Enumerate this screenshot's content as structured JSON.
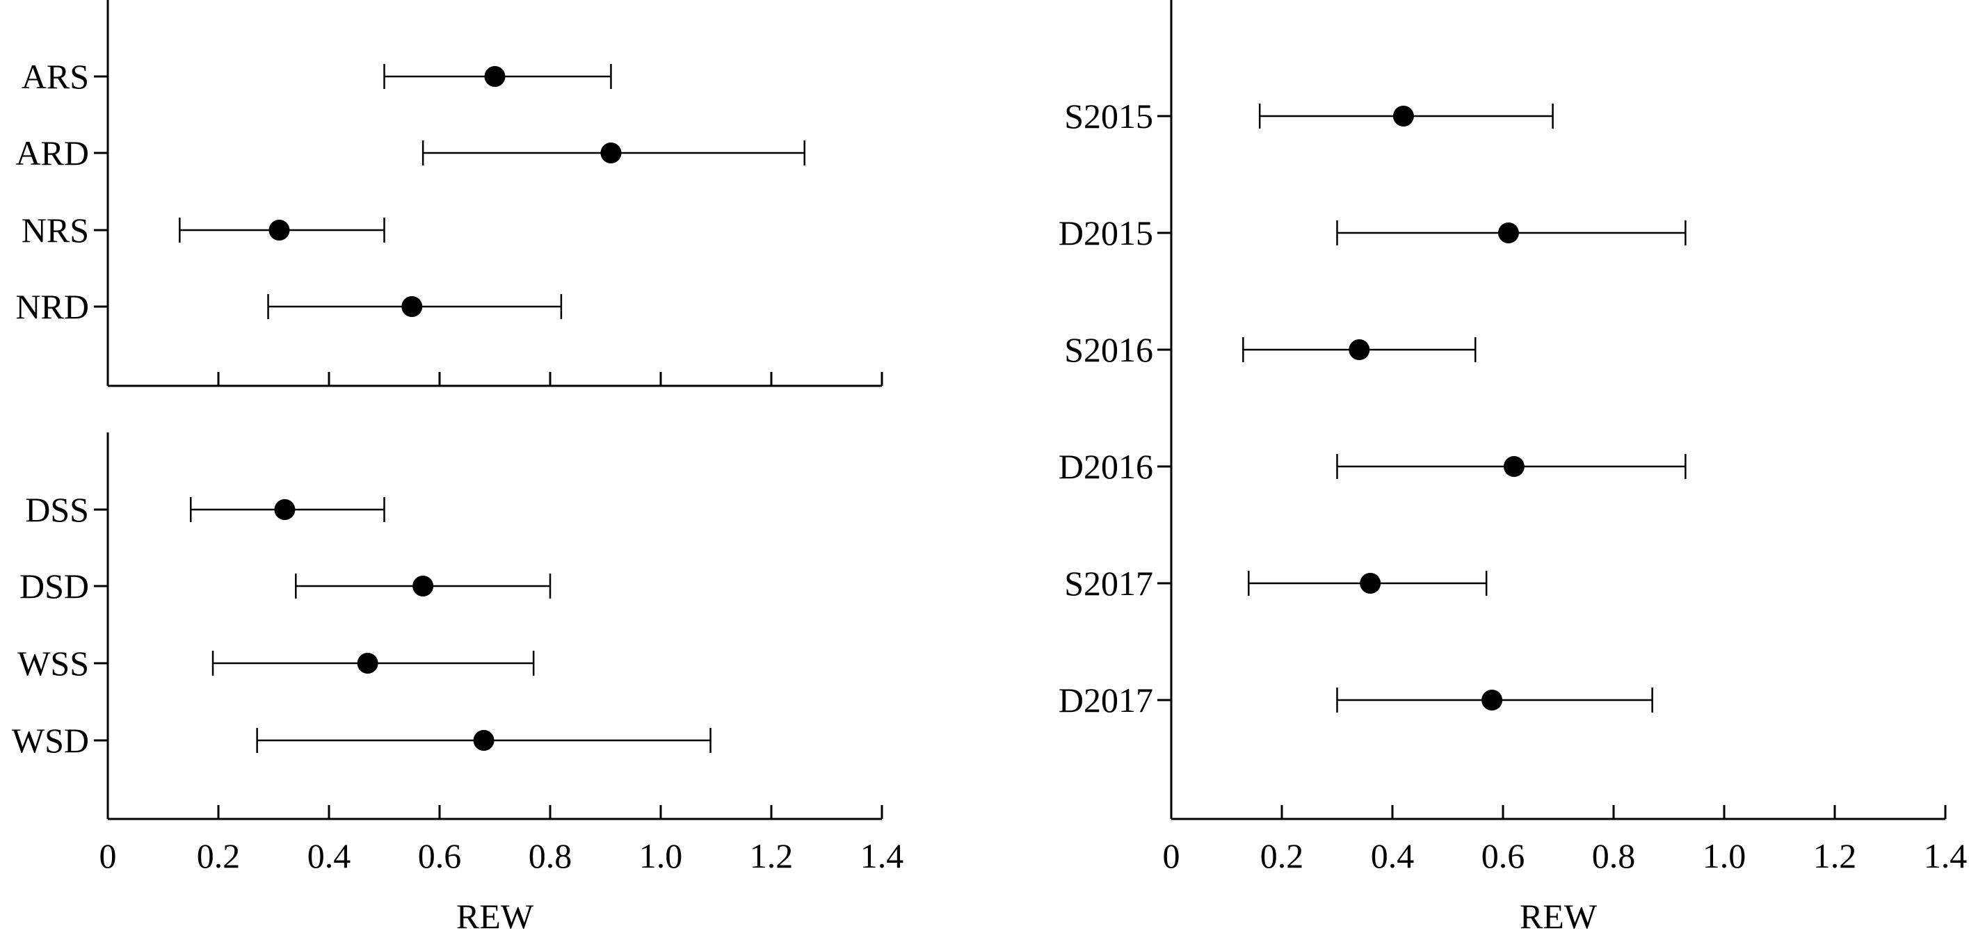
{
  "chart_data": [
    {
      "type": "scatter",
      "subtype": "forest-plot",
      "xlabel": "",
      "xlim": [
        0,
        1.4
      ],
      "xticks": [
        0.2,
        0.4,
        0.6,
        0.8,
        1.0,
        1.2,
        1.4
      ],
      "show_tick_labels": false,
      "categories": [
        "ARS",
        "ARD",
        "NRS",
        "NRD"
      ],
      "values": [
        0.7,
        0.91,
        0.31,
        0.55
      ],
      "lower": [
        0.5,
        0.57,
        0.13,
        0.29
      ],
      "upper": [
        0.91,
        1.26,
        0.5,
        0.82
      ]
    },
    {
      "type": "scatter",
      "subtype": "forest-plot",
      "xlabel": "REW",
      "xlim": [
        0,
        1.4
      ],
      "xticks": [
        0,
        0.2,
        0.4,
        0.6,
        0.8,
        1.0,
        1.2,
        1.4
      ],
      "xtick_labels": [
        "0",
        "0.2",
        "0.4",
        "0.6",
        "0.8",
        "1.0",
        "1.2",
        "1.4"
      ],
      "show_tick_labels": true,
      "categories": [
        "DSS",
        "DSD",
        "WSS",
        "WSD"
      ],
      "values": [
        0.32,
        0.57,
        0.47,
        0.68
      ],
      "lower": [
        0.15,
        0.34,
        0.19,
        0.27
      ],
      "upper": [
        0.5,
        0.8,
        0.77,
        1.09
      ]
    },
    {
      "type": "scatter",
      "subtype": "forest-plot",
      "xlabel": "REW",
      "xlim": [
        0,
        1.4
      ],
      "xticks": [
        0,
        0.2,
        0.4,
        0.6,
        0.8,
        1.0,
        1.2,
        1.4
      ],
      "xtick_labels": [
        "0",
        "0.2",
        "0.4",
        "0.6",
        "0.8",
        "1.0",
        "1.2",
        "1.4"
      ],
      "show_tick_labels": true,
      "categories": [
        "S2015",
        "D2015",
        "S2016",
        "D2016",
        "S2017",
        "D2017"
      ],
      "values": [
        0.42,
        0.61,
        0.34,
        0.62,
        0.36,
        0.58
      ],
      "lower": [
        0.16,
        0.3,
        0.13,
        0.3,
        0.14,
        0.3
      ],
      "upper": [
        0.69,
        0.93,
        0.55,
        0.93,
        0.57,
        0.87
      ]
    }
  ]
}
